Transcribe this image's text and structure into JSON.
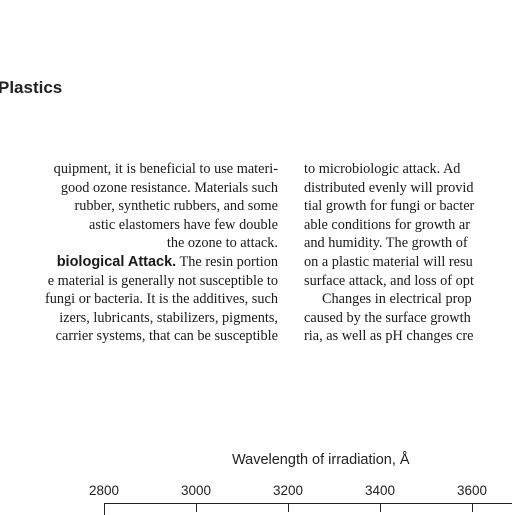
{
  "section_title": "Plastics",
  "left_column": [
    {
      "text": "quipment, it is beneficial to use materi-"
    },
    {
      "text": "good ozone resistance. Materials such"
    },
    {
      "text": "rubber, synthetic rubbers, and some"
    },
    {
      "text": "astic elastomers have few double"
    },
    {
      "text": "the ozone to attack."
    },
    {
      "head": "biological Attack.",
      "text": " The resin portion"
    },
    {
      "text": "e material is generally not susceptible to"
    },
    {
      "text": "fungi or bacteria. It is the additives, such"
    },
    {
      "text": "izers, lubricants, stabilizers, pigments,"
    },
    {
      "text": "carrier systems, that can be susceptible"
    }
  ],
  "right_column": [
    {
      "text": "to microbiologic attack. Ad"
    },
    {
      "text": "distributed evenly will provid"
    },
    {
      "text": "tial growth for fungi or bacter"
    },
    {
      "text": "able conditions for growth ar"
    },
    {
      "text": "and humidity. The growth of"
    },
    {
      "text": "on a plastic material will resu"
    },
    {
      "text": "surface attack, and loss of opt"
    },
    {
      "text": "Changes in electrical prop",
      "indent": true
    },
    {
      "text": "caused by the surface growth"
    },
    {
      "text": "ria, as well as pH changes cre"
    }
  ],
  "figure": {
    "x_axis_title": "Wavelength of irradiation, Å",
    "x_ticks": [
      "2800",
      "3000",
      "3200",
      "3400",
      "3600"
    ]
  }
}
